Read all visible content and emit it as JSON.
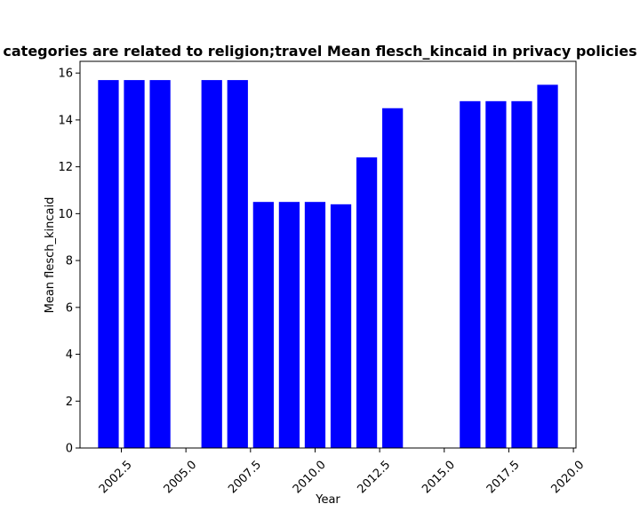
{
  "chart_data": {
    "type": "bar",
    "title": "categories are related to religion;travel Mean flesch_kincaid in privacy policies",
    "xlabel": "Year",
    "ylabel": "Mean flesch_kincaid",
    "x": [
      2002,
      2003,
      2004,
      2006,
      2007,
      2008,
      2009,
      2010,
      2011,
      2012,
      2013,
      2016,
      2017,
      2018,
      2019
    ],
    "values": [
      15.7,
      15.7,
      15.7,
      15.7,
      15.7,
      10.5,
      10.5,
      10.5,
      10.4,
      12.4,
      14.5,
      14.8,
      14.8,
      14.8,
      15.5
    ],
    "xlim": [
      2000.9,
      2020.1
    ],
    "ylim": [
      0,
      16.5
    ],
    "xticks": [
      2002.5,
      2005.0,
      2007.5,
      2010.0,
      2012.5,
      2015.0,
      2017.5,
      2020.0
    ],
    "xtick_labels": [
      "2002.5",
      "2005.0",
      "2007.5",
      "2010.0",
      "2012.5",
      "2015.0",
      "2017.5",
      "2020.0"
    ],
    "yticks": [
      0,
      2,
      4,
      6,
      8,
      10,
      12,
      14,
      16
    ],
    "ytick_labels": [
      "0",
      "2",
      "4",
      "6",
      "8",
      "10",
      "12",
      "14",
      "16"
    ],
    "bar_width": 0.8,
    "bar_color": "#0000ff",
    "grid": false,
    "legend": "none"
  }
}
